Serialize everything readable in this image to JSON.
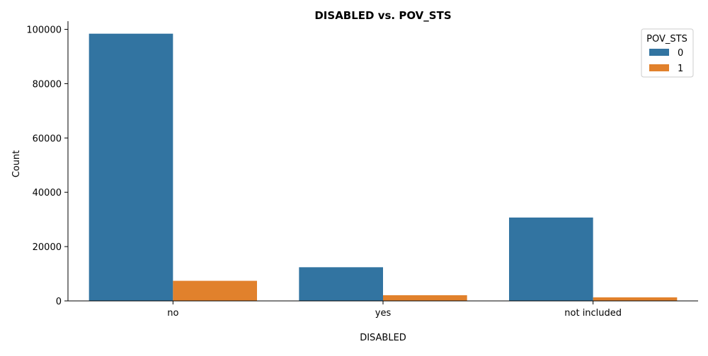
{
  "chart_data": {
    "type": "bar",
    "title": "DISABLED vs. POV_STS",
    "xlabel": "DISABLED",
    "ylabel": "Count",
    "categories": [
      "no",
      "yes",
      "not included"
    ],
    "series": [
      {
        "name": "0",
        "values": [
          98400,
          12400,
          30700
        ]
      },
      {
        "name": "1",
        "values": [
          7400,
          2100,
          1300
        ]
      }
    ],
    "ylim": [
      0,
      103000
    ],
    "yticks": [
      0,
      20000,
      40000,
      60000,
      80000,
      100000
    ],
    "legend": {
      "title": "POV_STS",
      "placement": "top-right"
    },
    "grid": false,
    "colors": [
      "#3274a1",
      "#e1812c"
    ]
  }
}
